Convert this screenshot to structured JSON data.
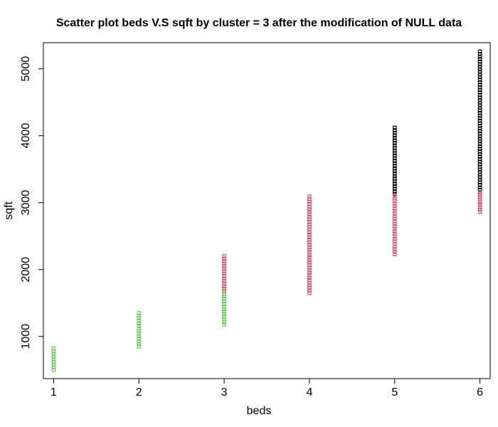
{
  "chart_data": {
    "type": "scatter",
    "title": "Scatter plot beds V.S sqft by cluster = 3 after the modification of NULL data",
    "xlabel": "beds",
    "ylabel": "sqft",
    "xlim": [
      0.88,
      6.12
    ],
    "ylim": [
      370,
      5390
    ],
    "xticks": [
      1,
      2,
      3,
      4,
      5,
      6
    ],
    "yticks": [
      1000,
      2000,
      3000,
      4000,
      5000
    ],
    "grid": false,
    "legend": "none",
    "marker": "open-square",
    "series": [
      {
        "cluster": 1,
        "color": "#000000",
        "points": [
          {
            "beds": 5,
            "sqft_min": 3130,
            "sqft_max": 4120
          },
          {
            "beds": 6,
            "sqft_min": 3150,
            "sqft_max": 5260
          }
        ]
      },
      {
        "cluster": 2,
        "color": "#DF536B",
        "points": [
          {
            "beds": 3,
            "sqft_min": 1640,
            "sqft_max": 2200
          },
          {
            "beds": 4,
            "sqft_min": 1650,
            "sqft_max": 3090
          },
          {
            "beds": 5,
            "sqft_min": 2230,
            "sqft_max": 3100
          },
          {
            "beds": 6,
            "sqft_min": 2860,
            "sqft_max": 3150
          }
        ]
      },
      {
        "cluster": 3,
        "color": "#61D04F",
        "points": [
          {
            "beds": 1,
            "sqft_min": 500,
            "sqft_max": 820
          },
          {
            "beds": 2,
            "sqft_min": 850,
            "sqft_max": 1350
          },
          {
            "beds": 3,
            "sqft_min": 1180,
            "sqft_max": 1640
          }
        ]
      }
    ]
  }
}
